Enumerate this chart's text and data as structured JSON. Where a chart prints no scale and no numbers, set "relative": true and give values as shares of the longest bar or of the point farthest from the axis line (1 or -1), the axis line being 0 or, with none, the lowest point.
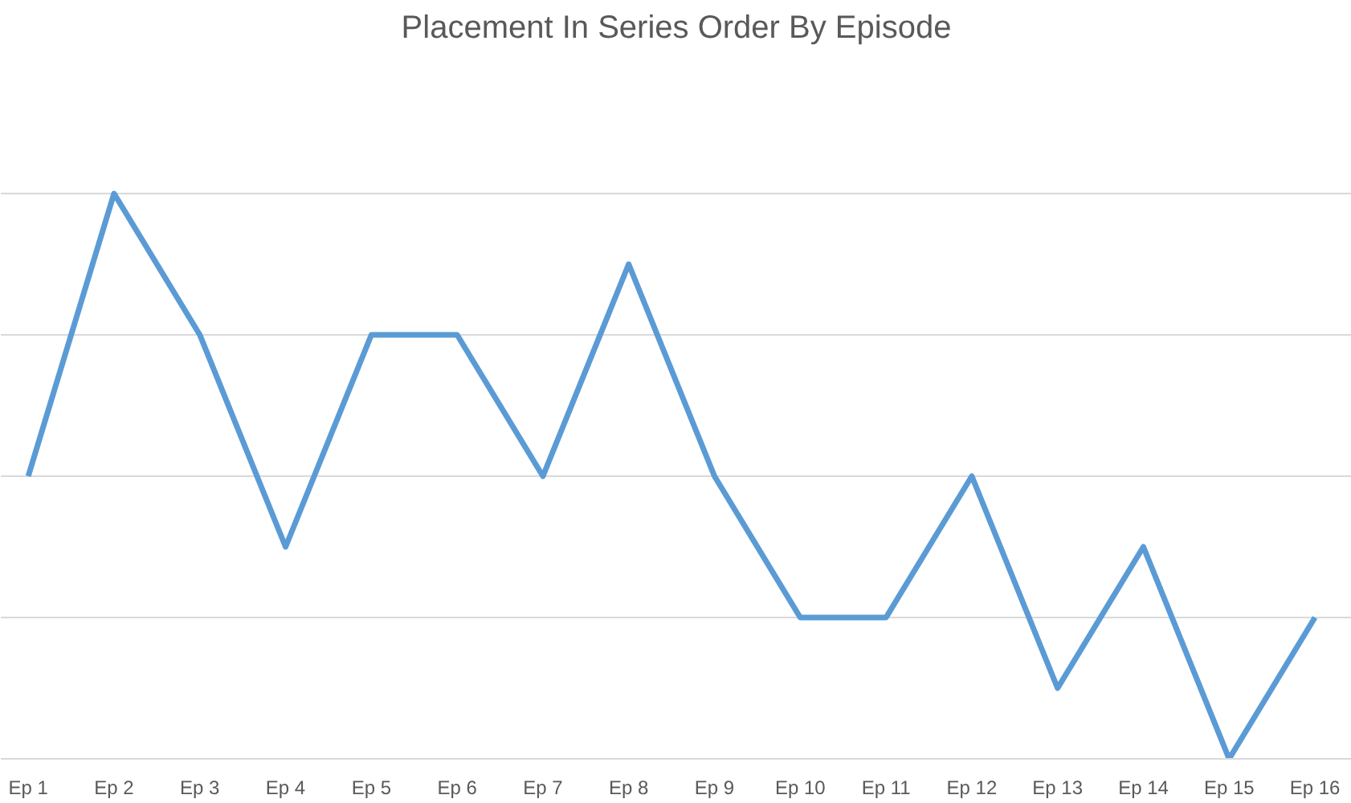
{
  "chart_data": {
    "type": "line",
    "title": "Placement In Series Order By Episode",
    "relative": true,
    "categories": [
      "Ep 1",
      "Ep 2",
      "Ep 3",
      "Ep 4",
      "Ep 5",
      "Ep 6",
      "Ep 7",
      "Ep 8",
      "Ep 9",
      "Ep 10",
      "Ep 11",
      "Ep 12",
      "Ep 13",
      "Ep 14",
      "Ep 15",
      "Ep 16"
    ],
    "series": [
      {
        "color": "#5b9bd5",
        "values": [
          0.5,
          1,
          0.75,
          0.375,
          0.75,
          0.75,
          0.5,
          0.875,
          0.5,
          0.25,
          0.25,
          0.5,
          0.125,
          0.375,
          0,
          0.25
        ]
      }
    ],
    "grid": "y",
    "marker": "none",
    "line_style": "solid"
  }
}
